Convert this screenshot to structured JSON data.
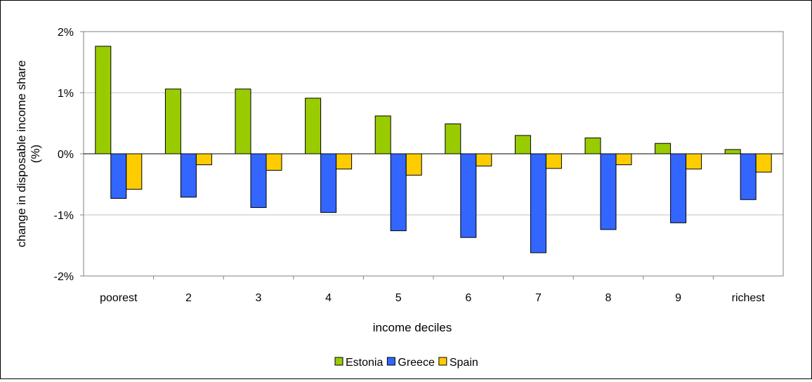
{
  "chart_data": {
    "type": "bar",
    "title": "",
    "xlabel": "income deciles",
    "ylabel": "change in disposable income share (%)",
    "ylim": [
      -2,
      2
    ],
    "y_ticks": [
      "2%",
      "1%",
      "0%",
      "-1%",
      "-2%"
    ],
    "y_tick_values": [
      2,
      1,
      0,
      -1,
      -2
    ],
    "grid": true,
    "legend_position": "bottom",
    "categories": [
      "poorest",
      "2",
      "3",
      "4",
      "5",
      "6",
      "7",
      "8",
      "9",
      "richest"
    ],
    "series": [
      {
        "name": "Estonia",
        "color": "#99cc00",
        "values": [
          1.76,
          1.06,
          1.06,
          0.91,
          0.62,
          0.49,
          0.3,
          0.26,
          0.17,
          0.07
        ]
      },
      {
        "name": "Greece",
        "color": "#3366ff",
        "values": [
          -0.73,
          -0.71,
          -0.88,
          -0.96,
          -1.26,
          -1.37,
          -1.62,
          -1.24,
          -1.13,
          -0.75
        ]
      },
      {
        "name": "Spain",
        "color": "#ffcc00",
        "values": [
          -0.58,
          -0.18,
          -0.27,
          -0.25,
          -0.35,
          -0.2,
          -0.24,
          -0.18,
          -0.25,
          -0.3
        ]
      }
    ]
  }
}
